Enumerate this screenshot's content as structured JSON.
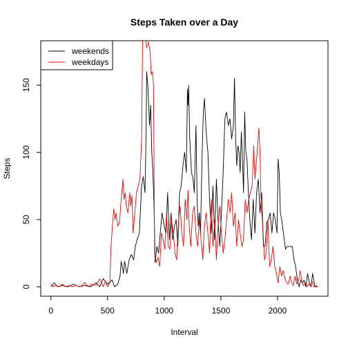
{
  "chart_data": {
    "type": "line",
    "title": "Steps Taken over a Day",
    "xlabel": "Interval",
    "ylabel": "Steps",
    "xlim": [
      0,
      2355
    ],
    "ylim": [
      0,
      180
    ],
    "xticks": [
      0,
      500,
      1000,
      1500,
      2000
    ],
    "yticks": [
      0,
      50,
      100,
      150
    ],
    "legend_position": "top-left",
    "series": [
      {
        "name": "weekends",
        "color": "#000000",
        "points": [
          [
            0,
            0
          ],
          [
            30,
            3
          ],
          [
            60,
            0
          ],
          [
            100,
            1
          ],
          [
            150,
            0
          ],
          [
            200,
            2
          ],
          [
            250,
            0
          ],
          [
            300,
            1
          ],
          [
            350,
            0
          ],
          [
            400,
            3
          ],
          [
            430,
            0
          ],
          [
            460,
            6
          ],
          [
            500,
            2
          ],
          [
            540,
            5
          ],
          [
            560,
            0
          ],
          [
            590,
            2
          ],
          [
            610,
            8
          ],
          [
            620,
            19
          ],
          [
            640,
            10
          ],
          [
            650,
            19
          ],
          [
            670,
            10
          ],
          [
            690,
            20
          ],
          [
            710,
            24
          ],
          [
            730,
            20
          ],
          [
            745,
            30
          ],
          [
            760,
            35
          ],
          [
            780,
            40
          ],
          [
            800,
            75
          ],
          [
            815,
            82
          ],
          [
            830,
            70
          ],
          [
            840,
            115
          ],
          [
            845,
            160
          ],
          [
            855,
            150
          ],
          [
            870,
            120
          ],
          [
            880,
            135
          ],
          [
            890,
            100
          ],
          [
            900,
            85
          ],
          [
            910,
            60
          ],
          [
            920,
            18
          ],
          [
            935,
            30
          ],
          [
            950,
            25
          ],
          [
            965,
            40
          ],
          [
            980,
            55
          ],
          [
            1000,
            45
          ],
          [
            1015,
            40
          ],
          [
            1030,
            70
          ],
          [
            1045,
            35
          ],
          [
            1060,
            55
          ],
          [
            1075,
            35
          ],
          [
            1090,
            45
          ],
          [
            1105,
            50
          ],
          [
            1120,
            30
          ],
          [
            1135,
            70
          ],
          [
            1150,
            75
          ],
          [
            1165,
            90
          ],
          [
            1180,
            100
          ],
          [
            1195,
            85
          ],
          [
            1205,
            147
          ],
          [
            1210,
            135
          ],
          [
            1215,
            150
          ],
          [
            1225,
            110
          ],
          [
            1240,
            85
          ],
          [
            1255,
            80
          ],
          [
            1265,
            70
          ],
          [
            1280,
            120
          ],
          [
            1290,
            65
          ],
          [
            1300,
            45
          ],
          [
            1310,
            55
          ],
          [
            1320,
            40
          ],
          [
            1335,
            100
          ],
          [
            1345,
            130
          ],
          [
            1355,
            140
          ],
          [
            1370,
            115
          ],
          [
            1385,
            100
          ],
          [
            1400,
            65
          ],
          [
            1415,
            40
          ],
          [
            1430,
            75
          ],
          [
            1445,
            35
          ],
          [
            1460,
            80
          ],
          [
            1475,
            50
          ],
          [
            1490,
            30
          ],
          [
            1505,
            55
          ],
          [
            1520,
            85
          ],
          [
            1535,
            125
          ],
          [
            1550,
            130
          ],
          [
            1565,
            120
          ],
          [
            1580,
            125
          ],
          [
            1595,
            110
          ],
          [
            1610,
            120
          ],
          [
            1620,
            155
          ],
          [
            1630,
            110
          ],
          [
            1640,
            90
          ],
          [
            1650,
            105
          ],
          [
            1660,
            100
          ],
          [
            1670,
            85
          ],
          [
            1680,
            115
          ],
          [
            1690,
            95
          ],
          [
            1700,
            70
          ],
          [
            1710,
            130
          ],
          [
            1720,
            100
          ],
          [
            1730,
            95
          ],
          [
            1740,
            75
          ],
          [
            1755,
            50
          ],
          [
            1770,
            35
          ],
          [
            1785,
            65
          ],
          [
            1800,
            40
          ],
          [
            1815,
            70
          ],
          [
            1830,
            80
          ],
          [
            1845,
            55
          ],
          [
            1860,
            70
          ],
          [
            1875,
            30
          ],
          [
            1890,
            30
          ],
          [
            1905,
            48
          ],
          [
            1920,
            50
          ],
          [
            1935,
            55
          ],
          [
            1950,
            40
          ],
          [
            1965,
            55
          ],
          [
            1980,
            50
          ],
          [
            1995,
            40
          ],
          [
            2005,
            95
          ],
          [
            2015,
            85
          ],
          [
            2025,
            55
          ],
          [
            2040,
            48
          ],
          [
            2055,
            38
          ],
          [
            2070,
            28
          ],
          [
            2085,
            30
          ],
          [
            2100,
            30
          ],
          [
            2115,
            30
          ],
          [
            2130,
            30
          ],
          [
            2145,
            20
          ],
          [
            2160,
            15
          ],
          [
            2175,
            5
          ],
          [
            2190,
            0
          ],
          [
            2205,
            5
          ],
          [
            2220,
            3
          ],
          [
            2235,
            5
          ],
          [
            2250,
            0
          ],
          [
            2265,
            10
          ],
          [
            2280,
            3
          ],
          [
            2295,
            0
          ],
          [
            2310,
            10
          ],
          [
            2330,
            0
          ],
          [
            2355,
            0
          ]
        ]
      },
      {
        "name": "weekdays",
        "color": "#ff0000",
        "points": [
          [
            0,
            2
          ],
          [
            20,
            0
          ],
          [
            40,
            1
          ],
          [
            70,
            0
          ],
          [
            100,
            2
          ],
          [
            130,
            0
          ],
          [
            160,
            1
          ],
          [
            190,
            0
          ],
          [
            220,
            1
          ],
          [
            260,
            0
          ],
          [
            300,
            3
          ],
          [
            330,
            0
          ],
          [
            360,
            2
          ],
          [
            400,
            1
          ],
          [
            430,
            6
          ],
          [
            460,
            0
          ],
          [
            480,
            4
          ],
          [
            500,
            0
          ],
          [
            520,
            3
          ],
          [
            530,
            30
          ],
          [
            545,
            48
          ],
          [
            555,
            58
          ],
          [
            565,
            50
          ],
          [
            575,
            55
          ],
          [
            590,
            45
          ],
          [
            605,
            48
          ],
          [
            620,
            65
          ],
          [
            635,
            80
          ],
          [
            645,
            65
          ],
          [
            655,
            70
          ],
          [
            665,
            60
          ],
          [
            680,
            55
          ],
          [
            695,
            70
          ],
          [
            705,
            60
          ],
          [
            715,
            68
          ],
          [
            725,
            40
          ],
          [
            740,
            55
          ],
          [
            755,
            70
          ],
          [
            770,
            75
          ],
          [
            785,
            80
          ],
          [
            800,
            110
          ],
          [
            810,
            195
          ],
          [
            820,
            205
          ],
          [
            830,
            190
          ],
          [
            845,
            178
          ],
          [
            860,
            182
          ],
          [
            875,
            175
          ],
          [
            885,
            158
          ],
          [
            895,
            160
          ],
          [
            905,
            150
          ],
          [
            915,
            25
          ],
          [
            930,
            18
          ],
          [
            945,
            22
          ],
          [
            960,
            15
          ],
          [
            975,
            40
          ],
          [
            990,
            35
          ],
          [
            1005,
            28
          ],
          [
            1020,
            55
          ],
          [
            1035,
            30
          ],
          [
            1050,
            28
          ],
          [
            1065,
            50
          ],
          [
            1080,
            40
          ],
          [
            1095,
            25
          ],
          [
            1110,
            20
          ],
          [
            1125,
            48
          ],
          [
            1140,
            60
          ],
          [
            1155,
            40
          ],
          [
            1170,
            30
          ],
          [
            1185,
            65
          ],
          [
            1200,
            50
          ],
          [
            1210,
            72
          ],
          [
            1220,
            45
          ],
          [
            1235,
            30
          ],
          [
            1250,
            55
          ],
          [
            1265,
            60
          ],
          [
            1280,
            40
          ],
          [
            1295,
            30
          ],
          [
            1310,
            50
          ],
          [
            1325,
            35
          ],
          [
            1340,
            20
          ],
          [
            1355,
            45
          ],
          [
            1370,
            55
          ],
          [
            1385,
            40
          ],
          [
            1400,
            25
          ],
          [
            1415,
            65
          ],
          [
            1430,
            30
          ],
          [
            1445,
            50
          ],
          [
            1460,
            20
          ],
          [
            1475,
            45
          ],
          [
            1490,
            60
          ],
          [
            1505,
            40
          ],
          [
            1520,
            25
          ],
          [
            1535,
            35
          ],
          [
            1550,
            50
          ],
          [
            1565,
            65
          ],
          [
            1580,
            55
          ],
          [
            1595,
            70
          ],
          [
            1610,
            45
          ],
          [
            1625,
            55
          ],
          [
            1640,
            30
          ],
          [
            1655,
            50
          ],
          [
            1670,
            40
          ],
          [
            1685,
            30
          ],
          [
            1700,
            35
          ],
          [
            1715,
            65
          ],
          [
            1730,
            55
          ],
          [
            1745,
            65
          ],
          [
            1760,
            70
          ],
          [
            1775,
            75
          ],
          [
            1790,
            105
          ],
          [
            1800,
            80
          ],
          [
            1810,
            90
          ],
          [
            1820,
            100
          ],
          [
            1835,
            118
          ],
          [
            1845,
            100
          ],
          [
            1855,
            60
          ],
          [
            1870,
            45
          ],
          [
            1885,
            20
          ],
          [
            1900,
            25
          ],
          [
            1915,
            50
          ],
          [
            1930,
            15
          ],
          [
            1945,
            20
          ],
          [
            1960,
            30
          ],
          [
            1975,
            15
          ],
          [
            1990,
            10
          ],
          [
            2005,
            3
          ],
          [
            2020,
            15
          ],
          [
            2035,
            8
          ],
          [
            2050,
            12
          ],
          [
            2065,
            6
          ],
          [
            2080,
            3
          ],
          [
            2095,
            2
          ],
          [
            2110,
            8
          ],
          [
            2125,
            3
          ],
          [
            2140,
            1
          ],
          [
            2155,
            8
          ],
          [
            2170,
            2
          ],
          [
            2185,
            5
          ],
          [
            2200,
            12
          ],
          [
            2215,
            3
          ],
          [
            2230,
            1
          ],
          [
            2245,
            3
          ],
          [
            2260,
            0
          ],
          [
            2275,
            2
          ],
          [
            2290,
            1
          ],
          [
            2305,
            4
          ],
          [
            2320,
            0
          ],
          [
            2340,
            1
          ],
          [
            2355,
            0
          ]
        ]
      }
    ]
  }
}
